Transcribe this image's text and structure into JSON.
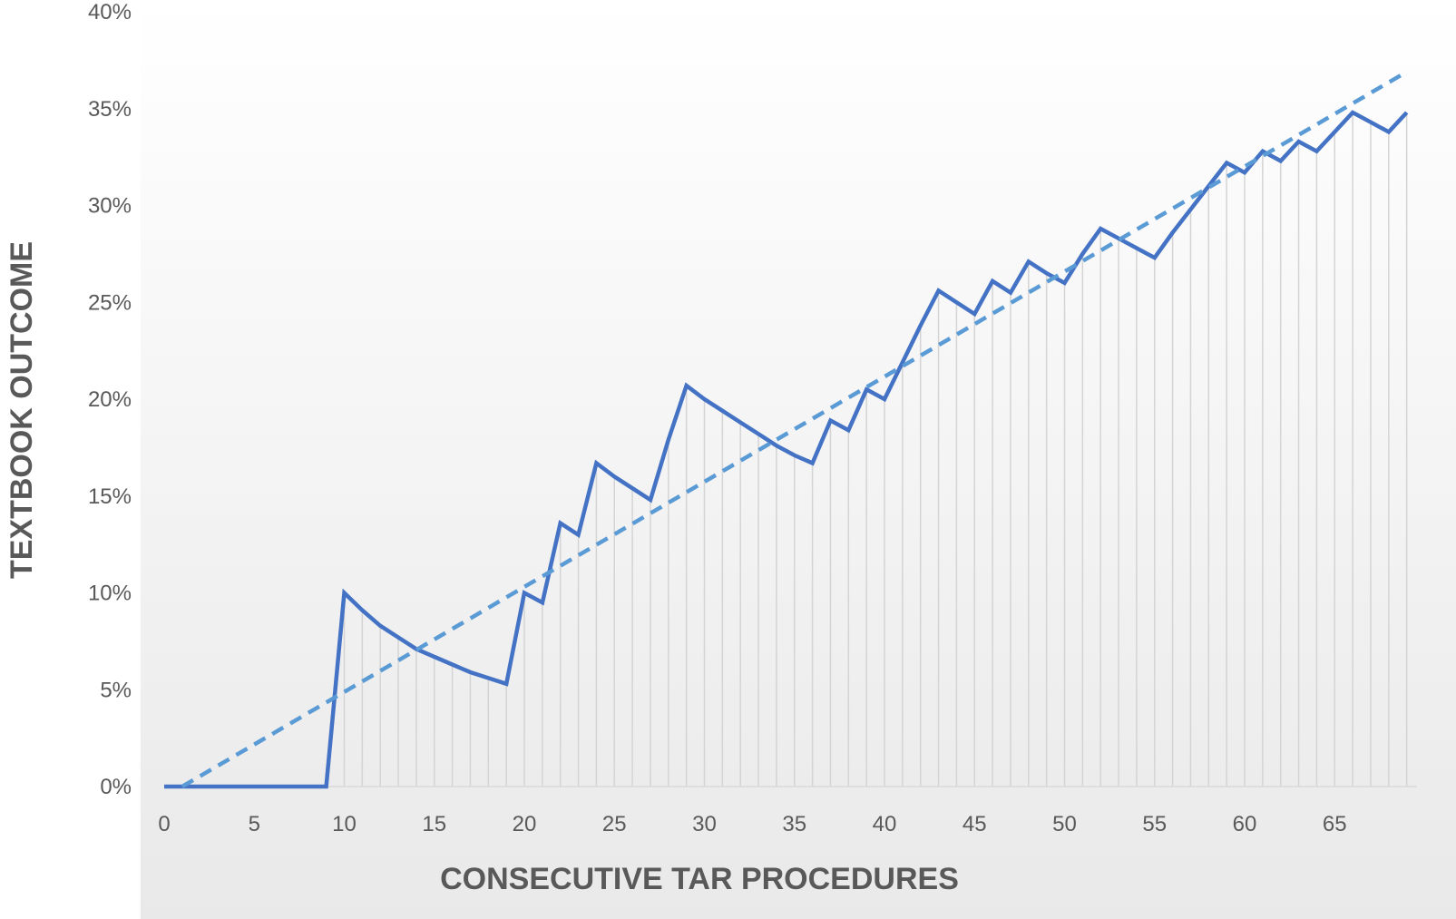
{
  "chart_data": {
    "type": "line",
    "title": "",
    "xlabel": "CONSECUTIVE TAR PROCEDURES",
    "ylabel": "TEXTBOOK OUTCOME",
    "xlim": [
      0,
      69
    ],
    "ylim": [
      0,
      40
    ],
    "x_ticks": [
      0,
      5,
      10,
      15,
      20,
      25,
      30,
      35,
      40,
      45,
      50,
      55,
      60,
      65
    ],
    "x_tick_labels": [
      "0",
      "5",
      "10",
      "15",
      "20",
      "25",
      "30",
      "35",
      "40",
      "45",
      "50",
      "55",
      "60",
      "65"
    ],
    "y_ticks": [
      0,
      5,
      10,
      15,
      20,
      25,
      30,
      35,
      40
    ],
    "y_tick_labels": [
      "0%",
      "5%",
      "10%",
      "15%",
      "20%",
      "25%",
      "30%",
      "35%",
      "40%"
    ],
    "area_fill": "vertical gradient, white at top to light grey at bottom, with vertical drop lines at each procedure",
    "grid": false,
    "legend": "none",
    "series": [
      {
        "style": "solid",
        "color": "#4472C4",
        "x": [
          0,
          1,
          2,
          3,
          4,
          5,
          6,
          7,
          8,
          9,
          10,
          11,
          12,
          13,
          14,
          15,
          16,
          17,
          18,
          19,
          20,
          21,
          22,
          23,
          24,
          25,
          26,
          27,
          28,
          29,
          30,
          31,
          32,
          33,
          34,
          35,
          36,
          37,
          38,
          39,
          40,
          41,
          42,
          43,
          44,
          45,
          46,
          47,
          48,
          49,
          50,
          51,
          52,
          53,
          54,
          55,
          56,
          57,
          58,
          59,
          60,
          61,
          62,
          63,
          64,
          65,
          66,
          67,
          68,
          69
        ],
        "y": [
          0,
          0,
          0,
          0,
          0,
          0,
          0,
          0,
          0,
          0,
          10.0,
          9.1,
          8.3,
          7.7,
          7.1,
          6.7,
          6.3,
          5.9,
          5.6,
          5.3,
          10.0,
          9.5,
          13.6,
          13.0,
          16.7,
          16.0,
          15.4,
          14.8,
          17.9,
          20.7,
          20.0,
          19.4,
          18.8,
          18.2,
          17.6,
          17.1,
          16.7,
          18.9,
          18.4,
          20.5,
          20.0,
          21.9,
          23.8,
          25.6,
          25.0,
          24.4,
          26.1,
          25.5,
          27.1,
          26.5,
          26.0,
          27.5,
          28.8,
          28.3,
          27.8,
          27.3,
          28.6,
          29.8,
          31.0,
          32.2,
          31.7,
          32.8,
          32.3,
          33.3,
          32.8,
          33.8,
          34.8,
          34.3,
          33.8,
          34.8
        ]
      },
      {
        "style": "dashed",
        "color": "#5B9BD5",
        "x": [
          1,
          69
        ],
        "y": [
          0,
          36.9
        ]
      }
    ]
  }
}
